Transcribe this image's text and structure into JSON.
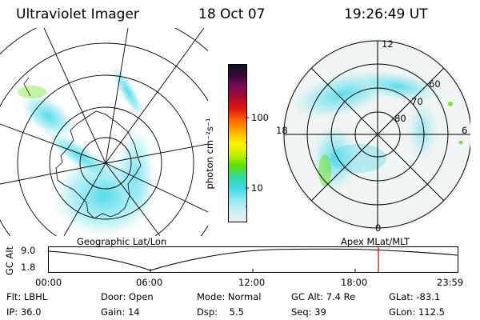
{
  "header": {
    "instrument": "Ultraviolet Imager",
    "date": "18 Oct 07",
    "time": "19:26:49 UT"
  },
  "colorbar": {
    "unit_label": "photon cm⁻²s⁻¹",
    "tick_100": "100",
    "tick_10": "10",
    "colors": [
      "#101020",
      "#3a0a3a",
      "#7a0a5a",
      "#b00a28",
      "#e01a10",
      "#ff6a00",
      "#ffb000",
      "#fff200",
      "#c8f000",
      "#5de000",
      "#30d8a0",
      "#40d8e8",
      "#8ce8f0",
      "#c8eef4",
      "#e6f0f0"
    ]
  },
  "geo_panel": {
    "caption": "Geographic Lat/Lon"
  },
  "apex_panel": {
    "caption": "Apex MLat/MLT",
    "mlt_12": "12",
    "mlt_18": "18",
    "mlt_6": "6",
    "mlt_0": "0",
    "lat_60": "60",
    "lat_70": "70",
    "lat_80": "80"
  },
  "timeline": {
    "axis_title": "GC Alt",
    "y_high": "9.0",
    "y_low": "1.8",
    "ticks": [
      "00:00",
      "06:00",
      "12:00",
      "18:00",
      "23:59"
    ],
    "marker_color": "#cc0000"
  },
  "footer": {
    "flt_label": "Flt:",
    "flt_value": "LBHL",
    "ip_label": "IP:",
    "ip_value": "36.0",
    "door_label": "Door:",
    "door_value": "Open",
    "gain_label": "Gain:",
    "gain_value": "14",
    "mode_label": "Mode:",
    "mode_value": "Normal",
    "dsp_label": "Dsp:",
    "dsp_value": "5.5",
    "gcalt_label": "GC Alt:",
    "gcalt_value": "7.4 Re",
    "seq_label": "Seq:",
    "seq_value": "39",
    "glat_label": "GLat:",
    "glat_value": "-83.1",
    "glon_label": "GLon:",
    "glon_value": "112.5"
  }
}
